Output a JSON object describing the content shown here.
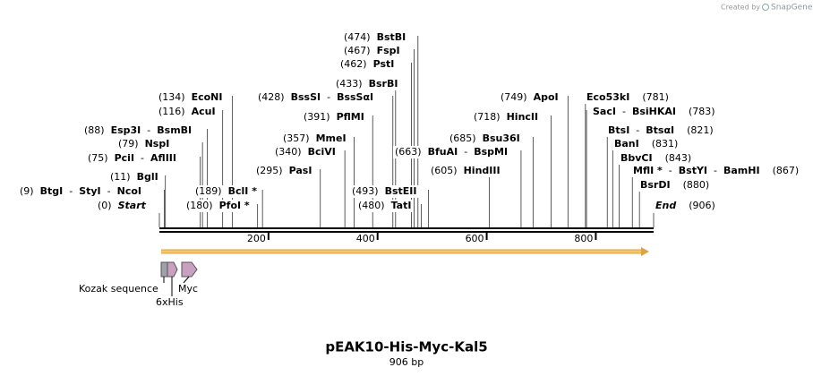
{
  "credit": {
    "prefix": "Created by",
    "brand": "SnapGene"
  },
  "map": {
    "title": "pEAK10-His-Myc-Kal5",
    "length_label": "906 bp",
    "length": 906,
    "separator": "-",
    "ruler_ticks": [
      200,
      400,
      600,
      800
    ],
    "sites": [
      {
        "bp": 0,
        "bp_label": "(0)",
        "enzymes": [
          "Start"
        ]
      },
      {
        "bp": 9,
        "bp_label": "(9)",
        "enzymes": [
          "BtgI",
          "StyI",
          "NcoI"
        ]
      },
      {
        "bp": 11,
        "bp_label": "(11)",
        "enzymes": [
          "BglI"
        ]
      },
      {
        "bp": 75,
        "bp_label": "(75)",
        "enzymes": [
          "PciI",
          "AflIII"
        ]
      },
      {
        "bp": 79,
        "bp_label": "(79)",
        "enzymes": [
          "NspI"
        ]
      },
      {
        "bp": 88,
        "bp_label": "(88)",
        "enzymes": [
          "Esp3I",
          "BsmBI"
        ]
      },
      {
        "bp": 116,
        "bp_label": "(116)",
        "enzymes": [
          "AcuI"
        ]
      },
      {
        "bp": 134,
        "bp_label": "(134)",
        "enzymes": [
          "EcoNI"
        ]
      },
      {
        "bp": 180,
        "bp_label": "(180)",
        "enzymes": [
          "PfoI *"
        ]
      },
      {
        "bp": 189,
        "bp_label": "(189)",
        "enzymes": [
          "BclI *"
        ]
      },
      {
        "bp": 295,
        "bp_label": "(295)",
        "enzymes": [
          "PasI"
        ]
      },
      {
        "bp": 340,
        "bp_label": "(340)",
        "enzymes": [
          "BciVI"
        ]
      },
      {
        "bp": 357,
        "bp_label": "(357)",
        "enzymes": [
          "MmeI"
        ]
      },
      {
        "bp": 391,
        "bp_label": "(391)",
        "enzymes": [
          "PflMI"
        ]
      },
      {
        "bp": 428,
        "bp_label": "(428)",
        "enzymes": [
          "BssSI",
          "BssSαI"
        ]
      },
      {
        "bp": 433,
        "bp_label": "(433)",
        "enzymes": [
          "BsrBI"
        ]
      },
      {
        "bp": 462,
        "bp_label": "(462)",
        "enzymes": [
          "PstI"
        ]
      },
      {
        "bp": 467,
        "bp_label": "(467)",
        "enzymes": [
          "FspI"
        ]
      },
      {
        "bp": 474,
        "bp_label": "(474)",
        "enzymes": [
          "BstBI"
        ]
      },
      {
        "bp": 480,
        "bp_label": "(480)",
        "enzymes": [
          "TatI"
        ]
      },
      {
        "bp": 493,
        "bp_label": "(493)",
        "enzymes": [
          "BstEII"
        ]
      },
      {
        "bp": 605,
        "bp_label": "(605)",
        "enzymes": [
          "HindIII"
        ]
      },
      {
        "bp": 663,
        "bp_label": "(663)",
        "enzymes": [
          "BfuAI",
          "BspMI"
        ]
      },
      {
        "bp": 685,
        "bp_label": "(685)",
        "enzymes": [
          "Bsu36I"
        ]
      },
      {
        "bp": 718,
        "bp_label": "(718)",
        "enzymes": [
          "HincII"
        ]
      },
      {
        "bp": 749,
        "bp_label": "(749)",
        "enzymes": [
          "ApoI"
        ]
      },
      {
        "bp": 781,
        "bp_label": "(781)",
        "enzymes": [
          "Eco53kI"
        ]
      },
      {
        "bp": 783,
        "bp_label": "(783)",
        "enzymes": [
          "SacI",
          "BsiHKAI"
        ]
      },
      {
        "bp": 821,
        "bp_label": "(821)",
        "enzymes": [
          "BtsI",
          "BtsαI"
        ]
      },
      {
        "bp": 831,
        "bp_label": "(831)",
        "enzymes": [
          "BanI"
        ]
      },
      {
        "bp": 843,
        "bp_label": "(843)",
        "enzymes": [
          "BbvCI"
        ]
      },
      {
        "bp": 867,
        "bp_label": "(867)",
        "enzymes": [
          "MflI *",
          "BstYI",
          "BamHI"
        ]
      },
      {
        "bp": 880,
        "bp_label": "(880)",
        "enzymes": [
          "BsrDI"
        ]
      },
      {
        "bp": 906,
        "bp_label": "(906)",
        "enzymes": [
          "End"
        ]
      }
    ],
    "features": [
      "Kozak sequence",
      "6xHis",
      "Myc"
    ]
  }
}
